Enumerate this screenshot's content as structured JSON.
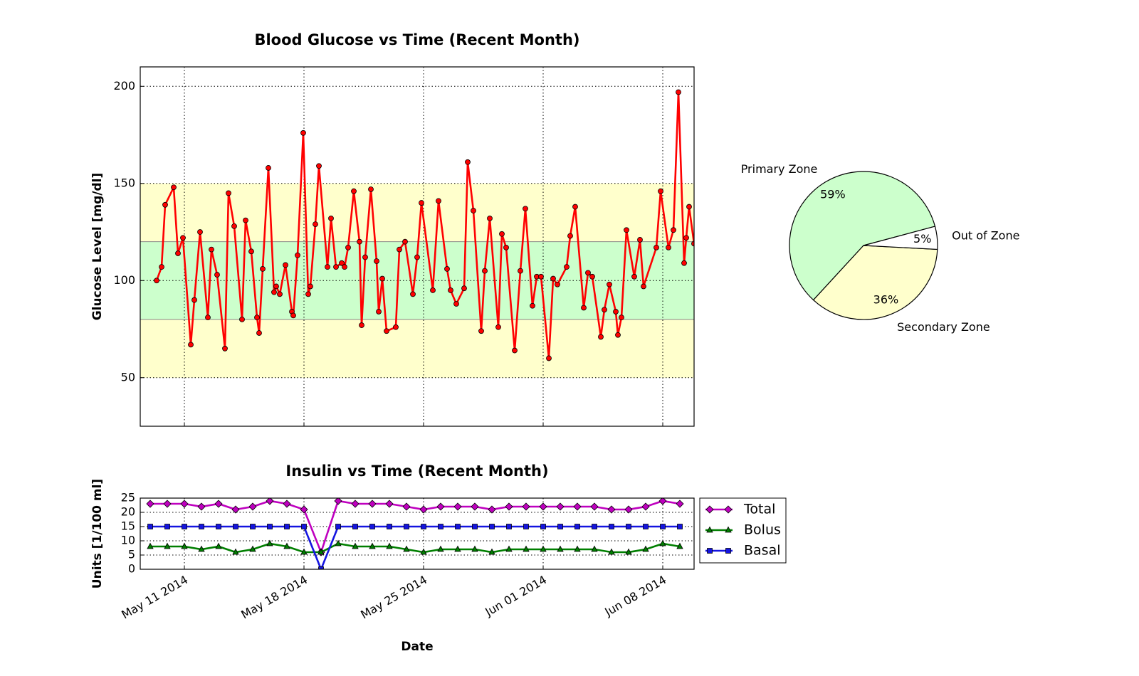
{
  "chart_data": [
    {
      "type": "line",
      "title": "Blood Glucose vs Time (Recent Month)",
      "ylabel": "Glucose Level [mg/dl]",
      "color": "#ff0000",
      "marker": "circle",
      "grid": true,
      "xlim": [
        "2014-05-08 10:00",
        "2014-06-09 20:00"
      ],
      "xticks": [
        "2014-05-11",
        "2014-05-18",
        "2014-05-25",
        "2014-06-01",
        "2014-06-08"
      ],
      "ylim": [
        25,
        210
      ],
      "yticks": [
        50,
        100,
        150,
        200
      ],
      "bands": [
        {
          "from": 50,
          "to": 150,
          "color": "#ffffcc"
        },
        {
          "from": 80,
          "to": 120,
          "color": "#ccffcc"
        }
      ],
      "x": [
        "2014-05-09 09:00",
        "2014-05-09 16:00",
        "2014-05-09 21:00",
        "2014-05-10 09:00",
        "2014-05-10 15:00",
        "2014-05-10 22:00",
        "2014-05-11 09:00",
        "2014-05-11 14:00",
        "2014-05-11 22:00",
        "2014-05-12 09:00",
        "2014-05-12 14:00",
        "2014-05-12 22:00",
        "2014-05-13 09:00",
        "2014-05-13 14:00",
        "2014-05-13 22:00",
        "2014-05-14 09:00",
        "2014-05-14 14:00",
        "2014-05-14 22:00",
        "2014-05-15 06:00",
        "2014-05-15 09:00",
        "2014-05-15 14:00",
        "2014-05-15 22:00",
        "2014-05-16 06:00",
        "2014-05-16 09:00",
        "2014-05-16 14:00",
        "2014-05-16 22:00",
        "2014-05-17 07:00",
        "2014-05-17 09:00",
        "2014-05-17 15:00",
        "2014-05-17 23:00",
        "2014-05-18 06:00",
        "2014-05-18 09:00",
        "2014-05-18 16:00",
        "2014-05-18 21:00",
        "2014-05-19 09:00",
        "2014-05-19 14:00",
        "2014-05-19 21:00",
        "2014-05-20 05:00",
        "2014-05-20 09:00",
        "2014-05-20 14:00",
        "2014-05-20 22:00",
        "2014-05-21 06:00",
        "2014-05-21 09:00",
        "2014-05-21 14:00",
        "2014-05-21 22:00",
        "2014-05-22 06:00",
        "2014-05-22 09:00",
        "2014-05-22 14:00",
        "2014-05-22 20:00",
        "2014-05-23 09:00",
        "2014-05-23 14:00",
        "2014-05-23 22:00",
        "2014-05-24 09:00",
        "2014-05-24 15:00",
        "2014-05-24 21:00",
        "2014-05-25 13:00",
        "2014-05-25 21:00",
        "2014-05-26 09:00",
        "2014-05-26 14:00",
        "2014-05-26 22:00",
        "2014-05-27 09:00",
        "2014-05-27 14:00",
        "2014-05-27 22:00",
        "2014-05-28 09:00",
        "2014-05-28 14:00",
        "2014-05-28 21:00",
        "2014-05-29 09:00",
        "2014-05-29 14:00",
        "2014-05-29 20:00",
        "2014-05-30 08:00",
        "2014-05-30 16:00",
        "2014-05-30 23:00",
        "2014-05-31 09:00",
        "2014-05-31 15:00",
        "2014-05-31 21:00",
        "2014-06-01 08:00",
        "2014-06-01 14:00",
        "2014-06-01 20:00",
        "2014-06-02 09:00",
        "2014-06-02 14:00",
        "2014-06-02 21:00",
        "2014-06-03 09:00",
        "2014-06-03 15:00",
        "2014-06-03 21:00",
        "2014-06-04 09:00",
        "2014-06-04 14:00",
        "2014-06-04 21:00",
        "2014-06-05 06:00",
        "2014-06-05 09:00",
        "2014-06-05 14:00",
        "2014-06-05 21:00",
        "2014-06-06 08:00",
        "2014-06-06 16:00",
        "2014-06-06 21:00",
        "2014-06-07 15:00",
        "2014-06-07 21:00",
        "2014-06-08 08:00",
        "2014-06-08 15:00",
        "2014-06-08 22:00",
        "2014-06-09 06:00",
        "2014-06-09 09:00",
        "2014-06-09 13:00",
        "2014-06-09 20:00"
      ],
      "values": [
        100,
        107,
        139,
        148,
        114,
        122,
        67,
        90,
        125,
        81,
        116,
        103,
        65,
        145,
        128,
        80,
        131,
        115,
        81,
        73,
        106,
        158,
        94,
        97,
        93,
        108,
        84,
        82,
        113,
        176,
        93,
        97,
        129,
        159,
        107,
        132,
        107,
        109,
        107,
        117,
        146,
        120,
        77,
        112,
        147,
        110,
        84,
        101,
        74,
        76,
        116,
        120,
        93,
        112,
        140,
        95,
        141,
        106,
        95,
        88,
        96,
        161,
        136,
        74,
        105,
        132,
        76,
        124,
        117,
        64,
        105,
        137,
        87,
        102,
        102,
        60,
        101,
        98,
        107,
        123,
        138,
        86,
        104,
        102,
        71,
        85,
        98,
        84,
        72,
        81,
        126,
        102,
        121,
        97,
        117,
        146,
        117,
        126,
        197,
        109,
        122,
        138,
        119
      ]
    },
    {
      "type": "line",
      "title": "Insulin vs Time (Recent Month)",
      "ylabel": "Units [1/100 ml]",
      "xlabel": "Date",
      "grid": true,
      "legend": "outside-right",
      "xlim": [
        "2014-05-08 10:00",
        "2014-06-09 20:00"
      ],
      "xticks": [
        {
          "value": "2014-05-11",
          "label": "May 11 2014"
        },
        {
          "value": "2014-05-18",
          "label": "May 18 2014"
        },
        {
          "value": "2014-05-25",
          "label": "May 25 2014"
        },
        {
          "value": "2014-06-01",
          "label": "Jun 01 2014"
        },
        {
          "value": "2014-06-08",
          "label": "Jun 08 2014"
        }
      ],
      "ylim": [
        0,
        25
      ],
      "yticks": [
        0,
        5,
        10,
        15,
        20,
        25
      ],
      "x": [
        "2014-05-09",
        "2014-05-10",
        "2014-05-11",
        "2014-05-12",
        "2014-05-13",
        "2014-05-14",
        "2014-05-15",
        "2014-05-16",
        "2014-05-17",
        "2014-05-18",
        "2014-05-19",
        "2014-05-20",
        "2014-05-21",
        "2014-05-22",
        "2014-05-23",
        "2014-05-24",
        "2014-05-25",
        "2014-05-26",
        "2014-05-27",
        "2014-05-28",
        "2014-05-29",
        "2014-05-30",
        "2014-05-31",
        "2014-06-01",
        "2014-06-02",
        "2014-06-03",
        "2014-06-04",
        "2014-06-05",
        "2014-06-06",
        "2014-06-07",
        "2014-06-08",
        "2014-06-09"
      ],
      "series": [
        {
          "name": "Total",
          "color": "#bf00bf",
          "marker": "diamond",
          "values": [
            23,
            23,
            23,
            22,
            23,
            21,
            22,
            24,
            23,
            21,
            6,
            24,
            23,
            23,
            23,
            22,
            21,
            22,
            22,
            22,
            21,
            22,
            22,
            22,
            22,
            22,
            22,
            21,
            21,
            22,
            24,
            23
          ]
        },
        {
          "name": "Bolus",
          "color": "#007f00",
          "marker": "triangle",
          "values": [
            8,
            8,
            8,
            7,
            8,
            6,
            7,
            9,
            8,
            6,
            6,
            9,
            8,
            8,
            8,
            7,
            6,
            7,
            7,
            7,
            6,
            7,
            7,
            7,
            7,
            7,
            7,
            6,
            6,
            7,
            9,
            8
          ]
        },
        {
          "name": "Basal",
          "color": "#1414e0",
          "marker": "square",
          "values": [
            15,
            15,
            15,
            15,
            15,
            15,
            15,
            15,
            15,
            15,
            0,
            15,
            15,
            15,
            15,
            15,
            15,
            15,
            15,
            15,
            15,
            15,
            15,
            15,
            15,
            15,
            15,
            15,
            15,
            15,
            15,
            15
          ]
        }
      ]
    },
    {
      "type": "pie",
      "labels": [
        "Primary Zone",
        "Secondary Zone",
        "Out of Zone"
      ],
      "values": [
        59,
        36,
        5
      ],
      "value_labels": [
        "59%",
        "36%",
        "5%"
      ],
      "colors": [
        "#ccffcc",
        "#ffffcc",
        "#ffffff"
      ],
      "startangle": 15
    }
  ]
}
